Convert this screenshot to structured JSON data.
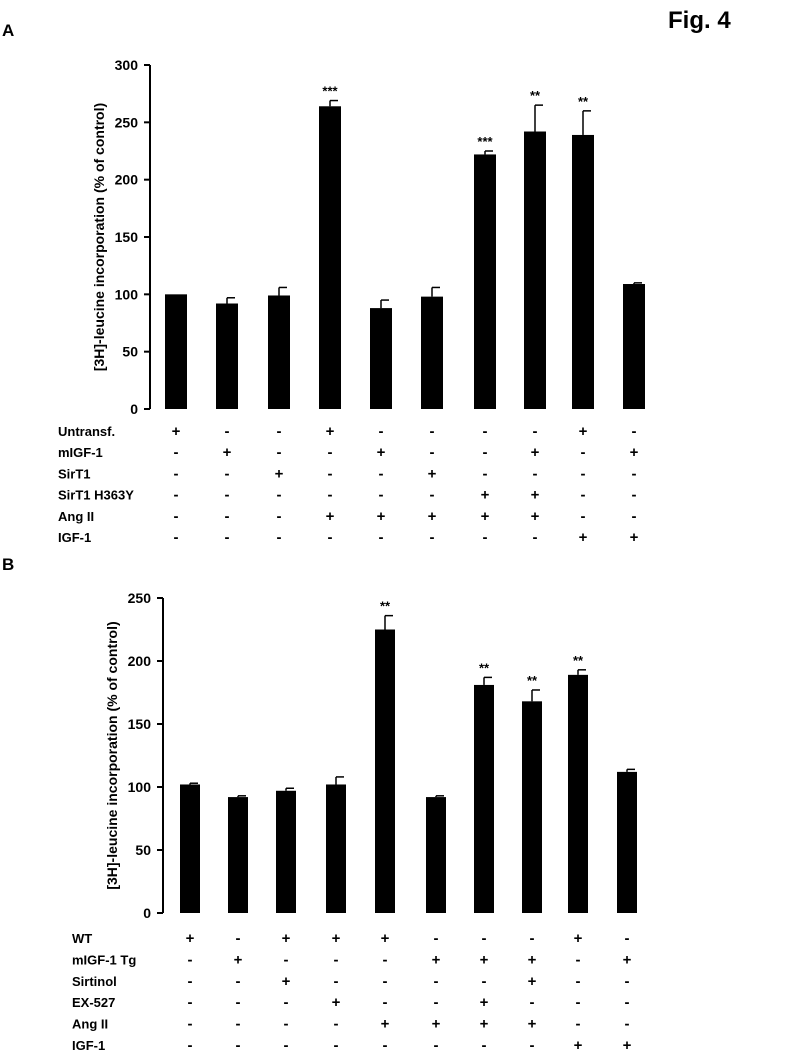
{
  "figure_title": "Fig. 4",
  "chart_data": [
    {
      "type": "bar",
      "panel": "A",
      "ylabel": "[3H]-leucine incorporation (% of control)",
      "ylim": [
        0,
        300
      ],
      "yticks": [
        0,
        50,
        100,
        150,
        200,
        250,
        300
      ],
      "values": [
        100,
        92,
        99,
        264,
        88,
        98,
        222,
        242,
        239,
        109
      ],
      "errors": [
        0,
        5,
        7,
        5,
        7,
        8,
        3,
        23,
        21,
        1
      ],
      "significance": [
        "",
        "",
        "",
        "***",
        "",
        "",
        "***",
        "**",
        "**",
        ""
      ],
      "conditions": [
        {
          "label": "Untransf.",
          "values": [
            "+",
            "-",
            "-",
            "+",
            "-",
            "-",
            "-",
            "-",
            "+",
            "-"
          ]
        },
        {
          "label": "mIGF-1",
          "values": [
            "-",
            "+",
            "-",
            "-",
            "+",
            "-",
            "-",
            "+",
            "-",
            "+"
          ]
        },
        {
          "label": "SirT1",
          "values": [
            "-",
            "-",
            "+",
            "-",
            "-",
            "+",
            "-",
            "-",
            "-",
            "-"
          ]
        },
        {
          "label": "SirT1 H363Y",
          "values": [
            "-",
            "-",
            "-",
            "-",
            "-",
            "-",
            "+",
            "+",
            "-",
            "-"
          ]
        },
        {
          "label": "Ang II",
          "values": [
            "-",
            "-",
            "-",
            "+",
            "+",
            "+",
            "+",
            "+",
            "-",
            "-"
          ]
        },
        {
          "label": "IGF-1",
          "values": [
            "-",
            "-",
            "-",
            "-",
            "-",
            "-",
            "-",
            "-",
            "+",
            "+"
          ]
        }
      ]
    },
    {
      "type": "bar",
      "panel": "B",
      "ylabel": "[3H]-leucine incorporation (% of control)",
      "ylim": [
        0,
        250
      ],
      "yticks": [
        0,
        50,
        100,
        150,
        200,
        250
      ],
      "values": [
        102,
        92,
        97,
        102,
        225,
        92,
        181,
        168,
        189,
        112
      ],
      "errors": [
        1,
        1,
        2,
        6,
        11,
        1,
        6,
        9,
        4,
        2
      ],
      "significance": [
        "",
        "",
        "",
        "",
        "**",
        "",
        "**",
        "**",
        "**",
        ""
      ],
      "conditions": [
        {
          "label": "WT",
          "values": [
            "+",
            "-",
            "+",
            "+",
            "+",
            "-",
            "-",
            "-",
            "+",
            "-"
          ]
        },
        {
          "label": "mIGF-1 Tg",
          "values": [
            "-",
            "+",
            "-",
            "-",
            "-",
            "+",
            "+",
            "+",
            "-",
            "+"
          ]
        },
        {
          "label": "Sirtinol",
          "values": [
            "-",
            "-",
            "+",
            "-",
            "-",
            "-",
            "-",
            "+",
            "-",
            "-"
          ]
        },
        {
          "label": "EX-527",
          "values": [
            "-",
            "-",
            "-",
            "+",
            "-",
            "-",
            "+",
            "-",
            "-",
            "-"
          ]
        },
        {
          "label": "Ang II",
          "values": [
            "-",
            "-",
            "-",
            "-",
            "+",
            "+",
            "+",
            "+",
            "-",
            "-"
          ]
        },
        {
          "label": "IGF-1",
          "values": [
            "-",
            "-",
            "-",
            "-",
            "-",
            "-",
            "-",
            "-",
            "+",
            "+"
          ]
        }
      ]
    }
  ]
}
